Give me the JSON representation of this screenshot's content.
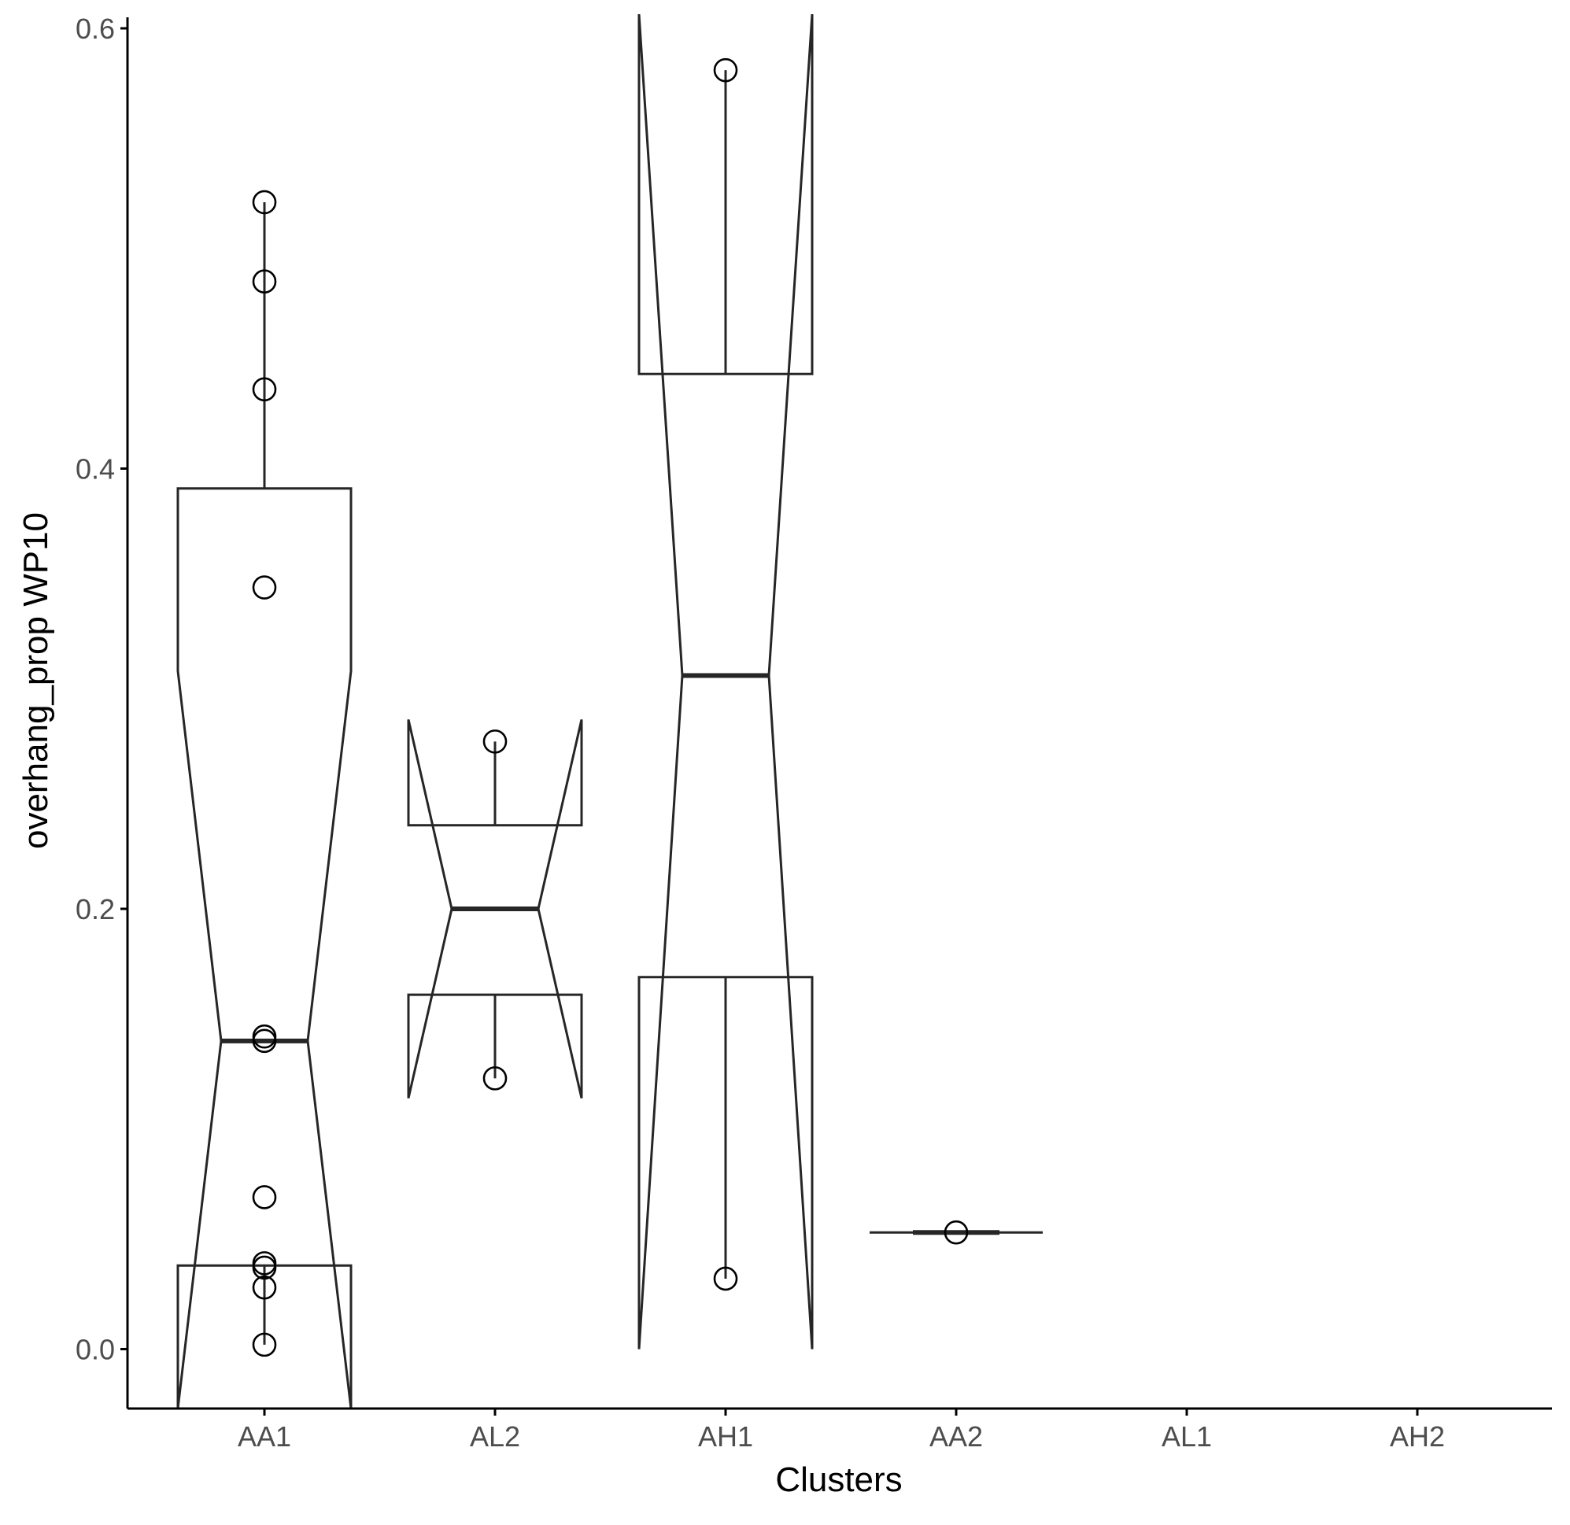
{
  "chart_data": {
    "type": "boxplot",
    "notched": true,
    "xlabel": "Clusters",
    "ylabel": "overhang_prop WP10",
    "ylim": [
      -0.027,
      0.605
    ],
    "yticks": [
      0.0,
      0.2,
      0.4,
      0.6
    ],
    "ytick_labels": [
      "0.0",
      "0.2",
      "0.4",
      "0.6"
    ],
    "categories": [
      "AA1",
      "AL2",
      "AH1",
      "AA2",
      "AL1",
      "AH2"
    ],
    "grid": false,
    "legend": "none",
    "boxes": [
      {
        "category": "AA1",
        "q1": 0.038,
        "median": 0.14,
        "q3": 0.391,
        "whisker_low": 0.002,
        "whisker_high": 0.521,
        "notch_low": -0.04,
        "notch_high": 0.308,
        "points": [
          0.521,
          0.485,
          0.436,
          0.346,
          0.142,
          0.14,
          0.069,
          0.039,
          0.037,
          0.028,
          0.002
        ]
      },
      {
        "category": "AL2",
        "q1": 0.161,
        "median": 0.2,
        "q3": 0.238,
        "whisker_low": 0.123,
        "whisker_high": 0.276,
        "notch_low": 0.114,
        "notch_high": 0.286,
        "points": [
          0.276,
          0.123
        ]
      },
      {
        "category": "AH1",
        "q1": 0.169,
        "median": 0.306,
        "q3": 0.443,
        "whisker_low": 0.032,
        "whisker_high": 0.581,
        "notch_low": 0.0,
        "notch_high": 0.612,
        "points": [
          0.581,
          0.032
        ]
      },
      {
        "category": "AA2",
        "q1": 0.053,
        "median": 0.053,
        "q3": 0.053,
        "whisker_low": 0.053,
        "whisker_high": 0.053,
        "notch_low": 0.053,
        "notch_high": 0.053,
        "points": [
          0.053
        ]
      }
    ]
  },
  "colors": {
    "line": "#262626",
    "axis": "#000000",
    "tick_text": "#4d4d4d",
    "background": "#ffffff"
  }
}
